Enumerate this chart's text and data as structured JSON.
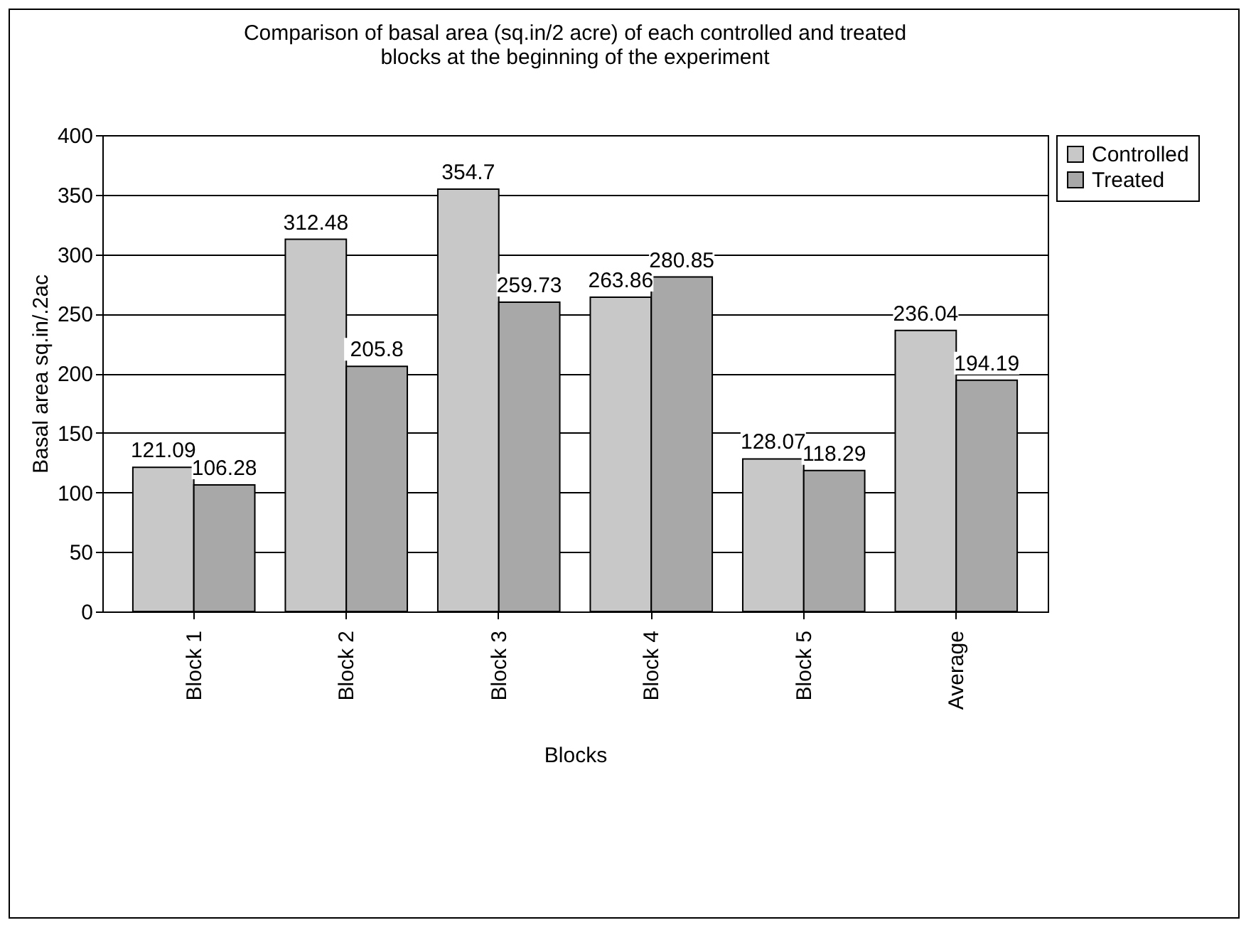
{
  "chart_data": {
    "type": "bar",
    "title": "Comparison of basal area (sq.in/2 acre) of each controlled and treated blocks at the beginning of the experiment",
    "xlabel": "Blocks",
    "ylabel": "Basal area sq.in/.2ac",
    "categories": [
      "Block 1",
      "Block 2",
      "Block 3",
      "Block 4",
      "Block 5",
      "Average"
    ],
    "series": [
      {
        "name": "Controlled",
        "color": "#c8c8c8",
        "values": [
          121.09,
          312.48,
          354.7,
          263.86,
          128.07,
          236.04
        ]
      },
      {
        "name": "Treated",
        "color": "#a8a8a8",
        "values": [
          106.28,
          205.8,
          259.73,
          280.85,
          118.29,
          194.19
        ]
      }
    ],
    "ylim": [
      0,
      400
    ],
    "yticks": [
      0,
      50,
      100,
      150,
      200,
      250,
      300,
      350,
      400
    ],
    "grid": "y",
    "legend": "right",
    "data_labels": true
  }
}
